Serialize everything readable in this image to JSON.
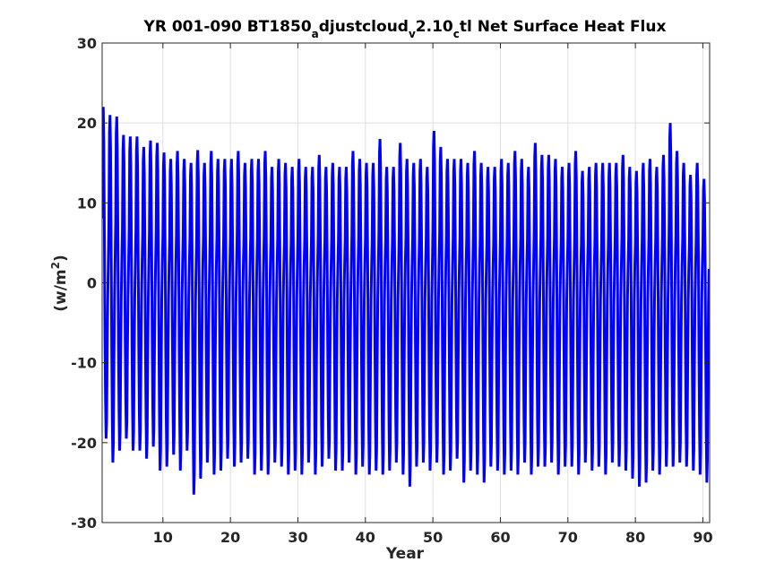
{
  "chart_data": {
    "type": "line",
    "title": {
      "main": "YR 001-090 BT1850",
      "sub1": "a",
      "mid1": "djustcloud",
      "sub2": "v",
      "mid2": "2.10",
      "sub3": "c",
      "end": "tl Net Surface Heat Flux"
    },
    "xlabel": "Year",
    "ylabel": {
      "prefix": "(w/m",
      "sup": "2",
      "suffix": ")"
    },
    "xlim": [
      1,
      91
    ],
    "ylim": [
      -30,
      30
    ],
    "xticks": [
      10,
      20,
      30,
      40,
      50,
      60,
      70,
      80,
      90
    ],
    "yticks": [
      -30,
      -20,
      -10,
      0,
      10,
      20,
      30
    ],
    "grid": true,
    "series": [
      {
        "color": "#0000ff",
        "sampling": "monthly",
        "annual_cycle": [
          5.5,
          13.5,
          15,
          12,
          4,
          -8,
          -17,
          -22.5,
          -20,
          -10,
          -2,
          2
        ],
        "years": [
          1,
          2,
          3,
          4,
          5,
          6,
          7,
          8,
          9,
          10,
          11,
          12,
          13,
          14,
          15,
          16,
          17,
          18,
          19,
          20,
          21,
          22,
          23,
          24,
          25,
          26,
          27,
          28,
          29,
          30,
          31,
          32,
          33,
          34,
          35,
          36,
          37,
          38,
          39,
          40,
          41,
          42,
          43,
          44,
          45,
          46,
          47,
          48,
          49,
          50,
          51,
          52,
          53,
          54,
          55,
          56,
          57,
          58,
          59,
          60,
          61,
          62,
          63,
          64,
          65,
          66,
          67,
          68,
          69,
          70,
          71,
          72,
          73,
          74,
          75,
          76,
          77,
          78,
          79,
          80,
          81,
          82,
          83,
          84,
          85,
          86,
          87,
          88,
          89,
          90
        ],
        "annual_max": [
          22,
          21,
          20.8,
          18.5,
          18.3,
          18.3,
          17,
          17.8,
          17.5,
          16.3,
          15.5,
          16.5,
          15.5,
          15,
          16.6,
          15,
          16.5,
          15.5,
          15.5,
          15.5,
          16.5,
          15,
          15.5,
          15.5,
          16.5,
          14.5,
          15.5,
          15,
          14.5,
          15.5,
          14.5,
          14.5,
          16,
          14.5,
          15,
          14.5,
          14.5,
          16.5,
          15.5,
          15,
          15,
          18,
          14.5,
          14.5,
          17.5,
          15.5,
          15,
          15.5,
          14.5,
          19,
          17,
          15.5,
          15.5,
          15.5,
          15,
          16.5,
          15,
          14.5,
          14.5,
          15.5,
          15,
          16.5,
          15.5,
          14.5,
          17.5,
          16,
          16,
          15.5,
          14.5,
          15,
          16.5,
          14,
          14.5,
          15,
          15,
          15,
          15,
          16,
          14.5,
          14,
          15,
          15.5,
          14.5,
          16,
          20,
          16.5,
          15,
          13.5,
          15,
          13
        ],
        "annual_min": [
          -19.5,
          -22.5,
          -21,
          -19.5,
          -21,
          -21,
          -22,
          -20.5,
          -23.5,
          -23,
          -21.5,
          -23.5,
          -21,
          -26.5,
          -24.5,
          -22.5,
          -24,
          -23.5,
          -22,
          -23,
          -22.5,
          -22,
          -24,
          -23.5,
          -24,
          -22.5,
          -23,
          -24,
          -23.5,
          -24,
          -22.5,
          -24,
          -23,
          -22,
          -23.5,
          -23.5,
          -22.5,
          -24,
          -23,
          -24,
          -23.5,
          -24,
          -23.5,
          -22.5,
          -24,
          -25.5,
          -23,
          -22.5,
          -23.5,
          -22.5,
          -24,
          -23.5,
          -22,
          -25,
          -23.5,
          -24,
          -25,
          -23,
          -23.5,
          -24,
          -23.5,
          -24,
          -22.5,
          -24,
          -23,
          -23,
          -22.5,
          -24,
          -23,
          -23,
          -24,
          -22.5,
          -23.5,
          -23,
          -24,
          -22.5,
          -23,
          -23.5,
          -24.5,
          -25.5,
          -25,
          -23.5,
          -24,
          -23,
          -23,
          -22.5,
          -23,
          -23.5,
          -24,
          -25
        ]
      }
    ]
  }
}
